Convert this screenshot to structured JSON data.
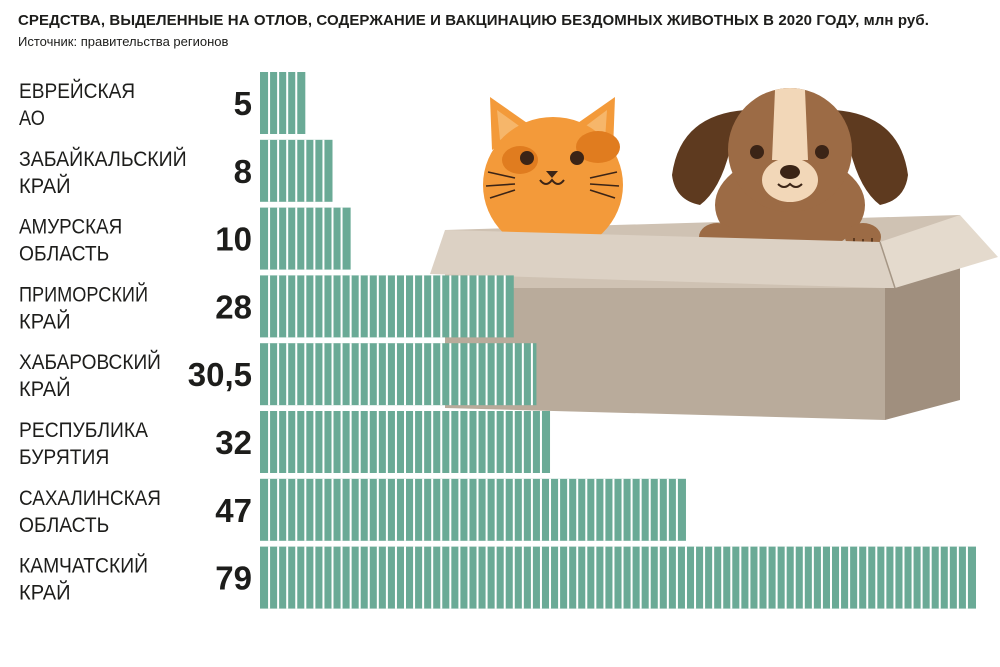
{
  "title": "СРЕДСТВА, ВЫДЕЛЕННЫЕ НА ОТЛОВ, СОДЕРЖАНИЕ И ВАКЦИНАЦИЮ БЕЗДОМНЫХ ЖИВОТНЫХ В 2020 ГОДУ, млн руб.",
  "subtitle": "Источник: правительства регионов",
  "colors": {
    "bar": "#6aaa96",
    "bar_divider": "#ffffff",
    "box_front": "#b9ab9b",
    "box_side": "#a08f7e",
    "box_flap": "#dcd1c4",
    "cat": "#f39a3a",
    "dog": "#9c6b45"
  },
  "chart_data": {
    "type": "bar",
    "orientation": "horizontal",
    "title": "СРЕДСТВА, ВЫДЕЛЕННЫЕ НА ОТЛОВ, СОДЕРЖАНИЕ И ВАКЦИНАЦИЮ БЕЗДОМНЫХ ЖИВОТНЫХ В 2020 ГОДУ, млн руб.",
    "categories": [
      [
        "ЕВРЕЙСКАЯ",
        "АО"
      ],
      [
        "ЗАБАЙКАЛЬСКИЙ",
        "КРАЙ"
      ],
      [
        "АМУРСКАЯ",
        "ОБЛАСТЬ"
      ],
      [
        "ПРИМОРСКИЙ",
        "КРАЙ"
      ],
      [
        "ХАБАРОВСКИЙ",
        "КРАЙ"
      ],
      [
        "РЕСПУБЛИКА",
        "БУРЯТИЯ"
      ],
      [
        "САХАЛИНСКАЯ",
        "ОБЛАСТЬ"
      ],
      [
        "КАМЧАТСКИЙ",
        "КРАЙ"
      ]
    ],
    "values": [
      5,
      8,
      10,
      28,
      30.5,
      32,
      47,
      79
    ],
    "value_labels": [
      "5",
      "8",
      "10",
      "28",
      "30,5",
      "32",
      "47",
      "79"
    ],
    "unit_per_segment": 1,
    "xlim": [
      0,
      79
    ],
    "grid": false,
    "legend": "none"
  }
}
